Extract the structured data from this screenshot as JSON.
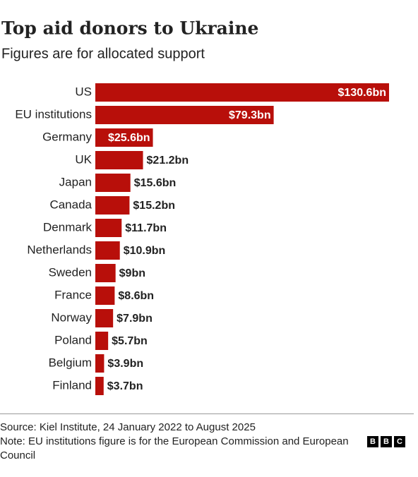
{
  "chart_data": {
    "type": "bar",
    "orientation": "horizontal",
    "title": "Top aid donors to Ukraine",
    "subtitle": "Figures are for allocated support",
    "categories": [
      "US",
      "EU institutions",
      "Germany",
      "UK",
      "Japan",
      "Canada",
      "Denmark",
      "Netherlands",
      "Sweden",
      "France",
      "Norway",
      "Poland",
      "Belgium",
      "Finland"
    ],
    "values": [
      130.6,
      79.3,
      25.6,
      21.2,
      15.6,
      15.2,
      11.7,
      10.9,
      9,
      8.6,
      7.9,
      5.7,
      3.9,
      3.7
    ],
    "value_labels": [
      "$130.6bn",
      "$79.3bn",
      "$25.6bn",
      "$21.2bn",
      "$15.6bn",
      "$15.2bn",
      "$11.7bn",
      "$10.9bn",
      "$9bn",
      "$8.6bn",
      "$7.9bn",
      "$5.7bn",
      "$3.9bn",
      "$3.7bn"
    ],
    "color": "#b80f0a",
    "source": "Source: Kiel Institute, 24 January 2022 to August 2025",
    "note": "Note: EU institutions figure is for the European Commission and European Council",
    "logo": [
      "B",
      "B",
      "C"
    ]
  }
}
